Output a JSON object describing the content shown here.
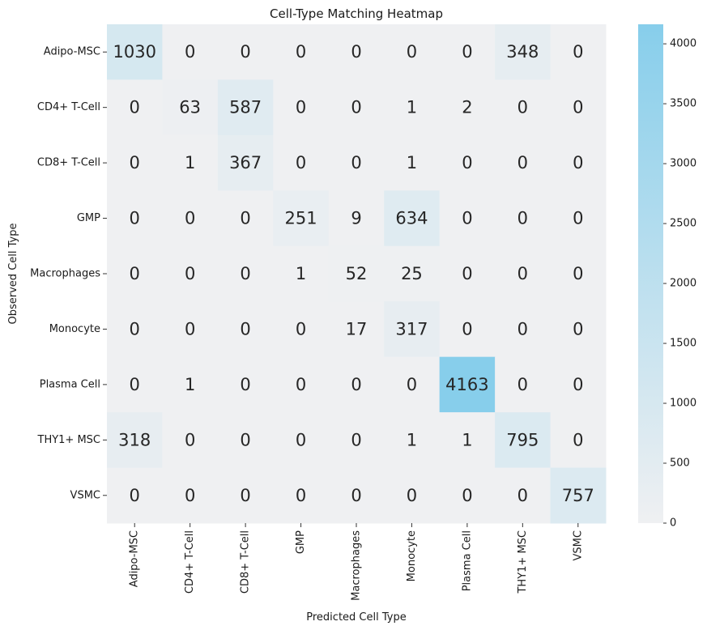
{
  "chart_data": {
    "type": "heatmap",
    "title": "Cell-Type Matching Heatmap",
    "xlabel": "Predicted Cell Type",
    "ylabel": "Observed Cell Type",
    "x_categories": [
      "Adipo-MSC",
      "CD4+ T-Cell",
      "CD8+ T-Cell",
      "GMP",
      "Macrophages",
      "Monocyte",
      "Plasma Cell",
      "THY1+ MSC",
      "VSMC"
    ],
    "y_categories": [
      "Adipo-MSC",
      "CD4+ T-Cell",
      "CD8+ T-Cell",
      "GMP",
      "Macrophages",
      "Monocyte",
      "Plasma Cell",
      "THY1+ MSC",
      "VSMC"
    ],
    "values": [
      [
        1030,
        0,
        0,
        0,
        0,
        0,
        0,
        348,
        0
      ],
      [
        0,
        63,
        587,
        0,
        0,
        1,
        2,
        0,
        0
      ],
      [
        0,
        1,
        367,
        0,
        0,
        1,
        0,
        0,
        0
      ],
      [
        0,
        0,
        0,
        251,
        9,
        634,
        0,
        0,
        0
      ],
      [
        0,
        0,
        0,
        1,
        52,
        25,
        0,
        0,
        0
      ],
      [
        0,
        0,
        0,
        0,
        17,
        317,
        0,
        0,
        0
      ],
      [
        0,
        1,
        0,
        0,
        0,
        0,
        4163,
        0,
        0
      ],
      [
        318,
        0,
        0,
        0,
        0,
        1,
        1,
        795,
        0
      ],
      [
        0,
        0,
        0,
        0,
        0,
        0,
        0,
        0,
        757
      ]
    ],
    "colorbar": {
      "min": 0,
      "max": 4163,
      "ticks": [
        0,
        500,
        1000,
        1500,
        2000,
        2500,
        3000,
        3500,
        4000
      ],
      "low_color": "#eff0f2",
      "high_color": "#87ceeb"
    }
  }
}
